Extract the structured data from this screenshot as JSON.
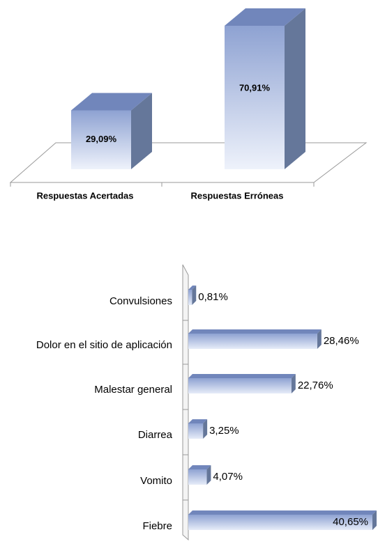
{
  "chart_data": [
    {
      "type": "bar3d",
      "categories": [
        "Respuestas Acertadas",
        "Respuestas Erróneas"
      ],
      "values": [
        29.09,
        70.91
      ],
      "value_labels": [
        "29,09%",
        "70,91%"
      ],
      "color": "#8fa3d3"
    },
    {
      "type": "hbar3d",
      "categories": [
        "Convulsiones",
        "Dolor en el sitio de aplicación",
        "Malestar general",
        "Diarrea",
        "Vomito",
        "Fiebre"
      ],
      "values": [
        0.81,
        28.46,
        22.76,
        3.25,
        4.07,
        40.65
      ],
      "value_labels": [
        "0,81%",
        "28,46%",
        "22,76%",
        "3,25%",
        "4,07%",
        "40,65%"
      ],
      "color": "#8fa3d3"
    }
  ]
}
